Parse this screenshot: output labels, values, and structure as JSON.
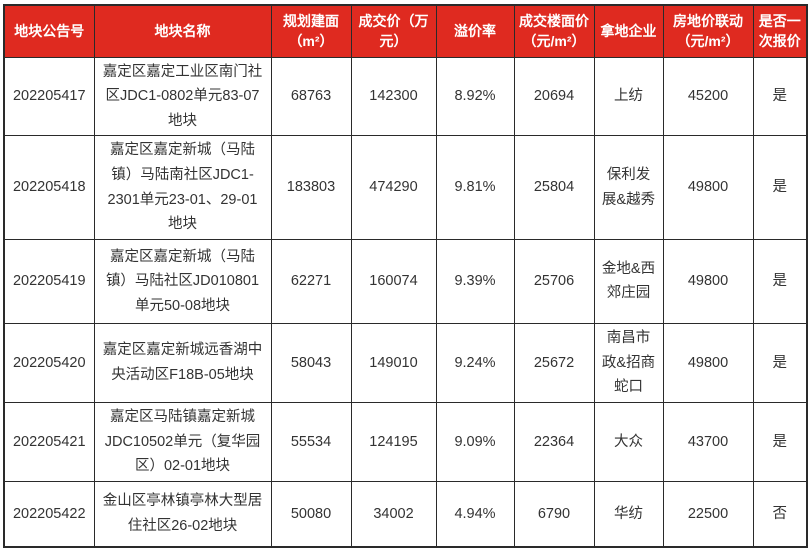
{
  "theme": {
    "header_bg": "#df2a20",
    "header_text": "#ffffff",
    "border_color": "#2a2a2a",
    "body_text": "#333333",
    "background": "#ffffff"
  },
  "chart_data": {
    "type": "table",
    "columns": [
      "地块公告号",
      "地块名称",
      "规划建面\n（m²）",
      "成交价（万\n元）",
      "溢价率",
      "成交楼面价\n（元/m²）",
      "拿地企业",
      "房地价联动\n（元/m²）",
      "是否一\n次报价"
    ],
    "rows": [
      [
        "202205417",
        "嘉定区嘉定工业区南门社区JDC1-0802单元83-07地块",
        "68763",
        "142300",
        "8.92%",
        "20694",
        "上纺",
        "45200",
        "是"
      ],
      [
        "202205418",
        "嘉定区嘉定新城（马陆镇）马陆南社区JDC1-2301单元23-01、29-01地块",
        "183803",
        "474290",
        "9.81%",
        "25804",
        "保利发展&越秀",
        "49800",
        "是"
      ],
      [
        "202205419",
        "嘉定区嘉定新城（马陆镇）马陆社区JD010801单元50-08地块",
        "62271",
        "160074",
        "9.39%",
        "25706",
        "金地&西郊庄园",
        "49800",
        "是"
      ],
      [
        "202205420",
        "嘉定区嘉定新城远香湖中央活动区F18B-05地块",
        "58043",
        "149010",
        "9.24%",
        "25672",
        "南昌市政&招商蛇口",
        "49800",
        "是"
      ],
      [
        "202205421",
        "嘉定区马陆镇嘉定新城JDC10502单元（复华园区）02-01地块",
        "55534",
        "124195",
        "9.09%",
        "22364",
        "大众",
        "43700",
        "是"
      ],
      [
        "202205422",
        "金山区亭林镇亭林大型居住社区26-02地块",
        "50080",
        "34002",
        "4.94%",
        "6790",
        "华纺",
        "22500",
        "否"
      ]
    ]
  }
}
